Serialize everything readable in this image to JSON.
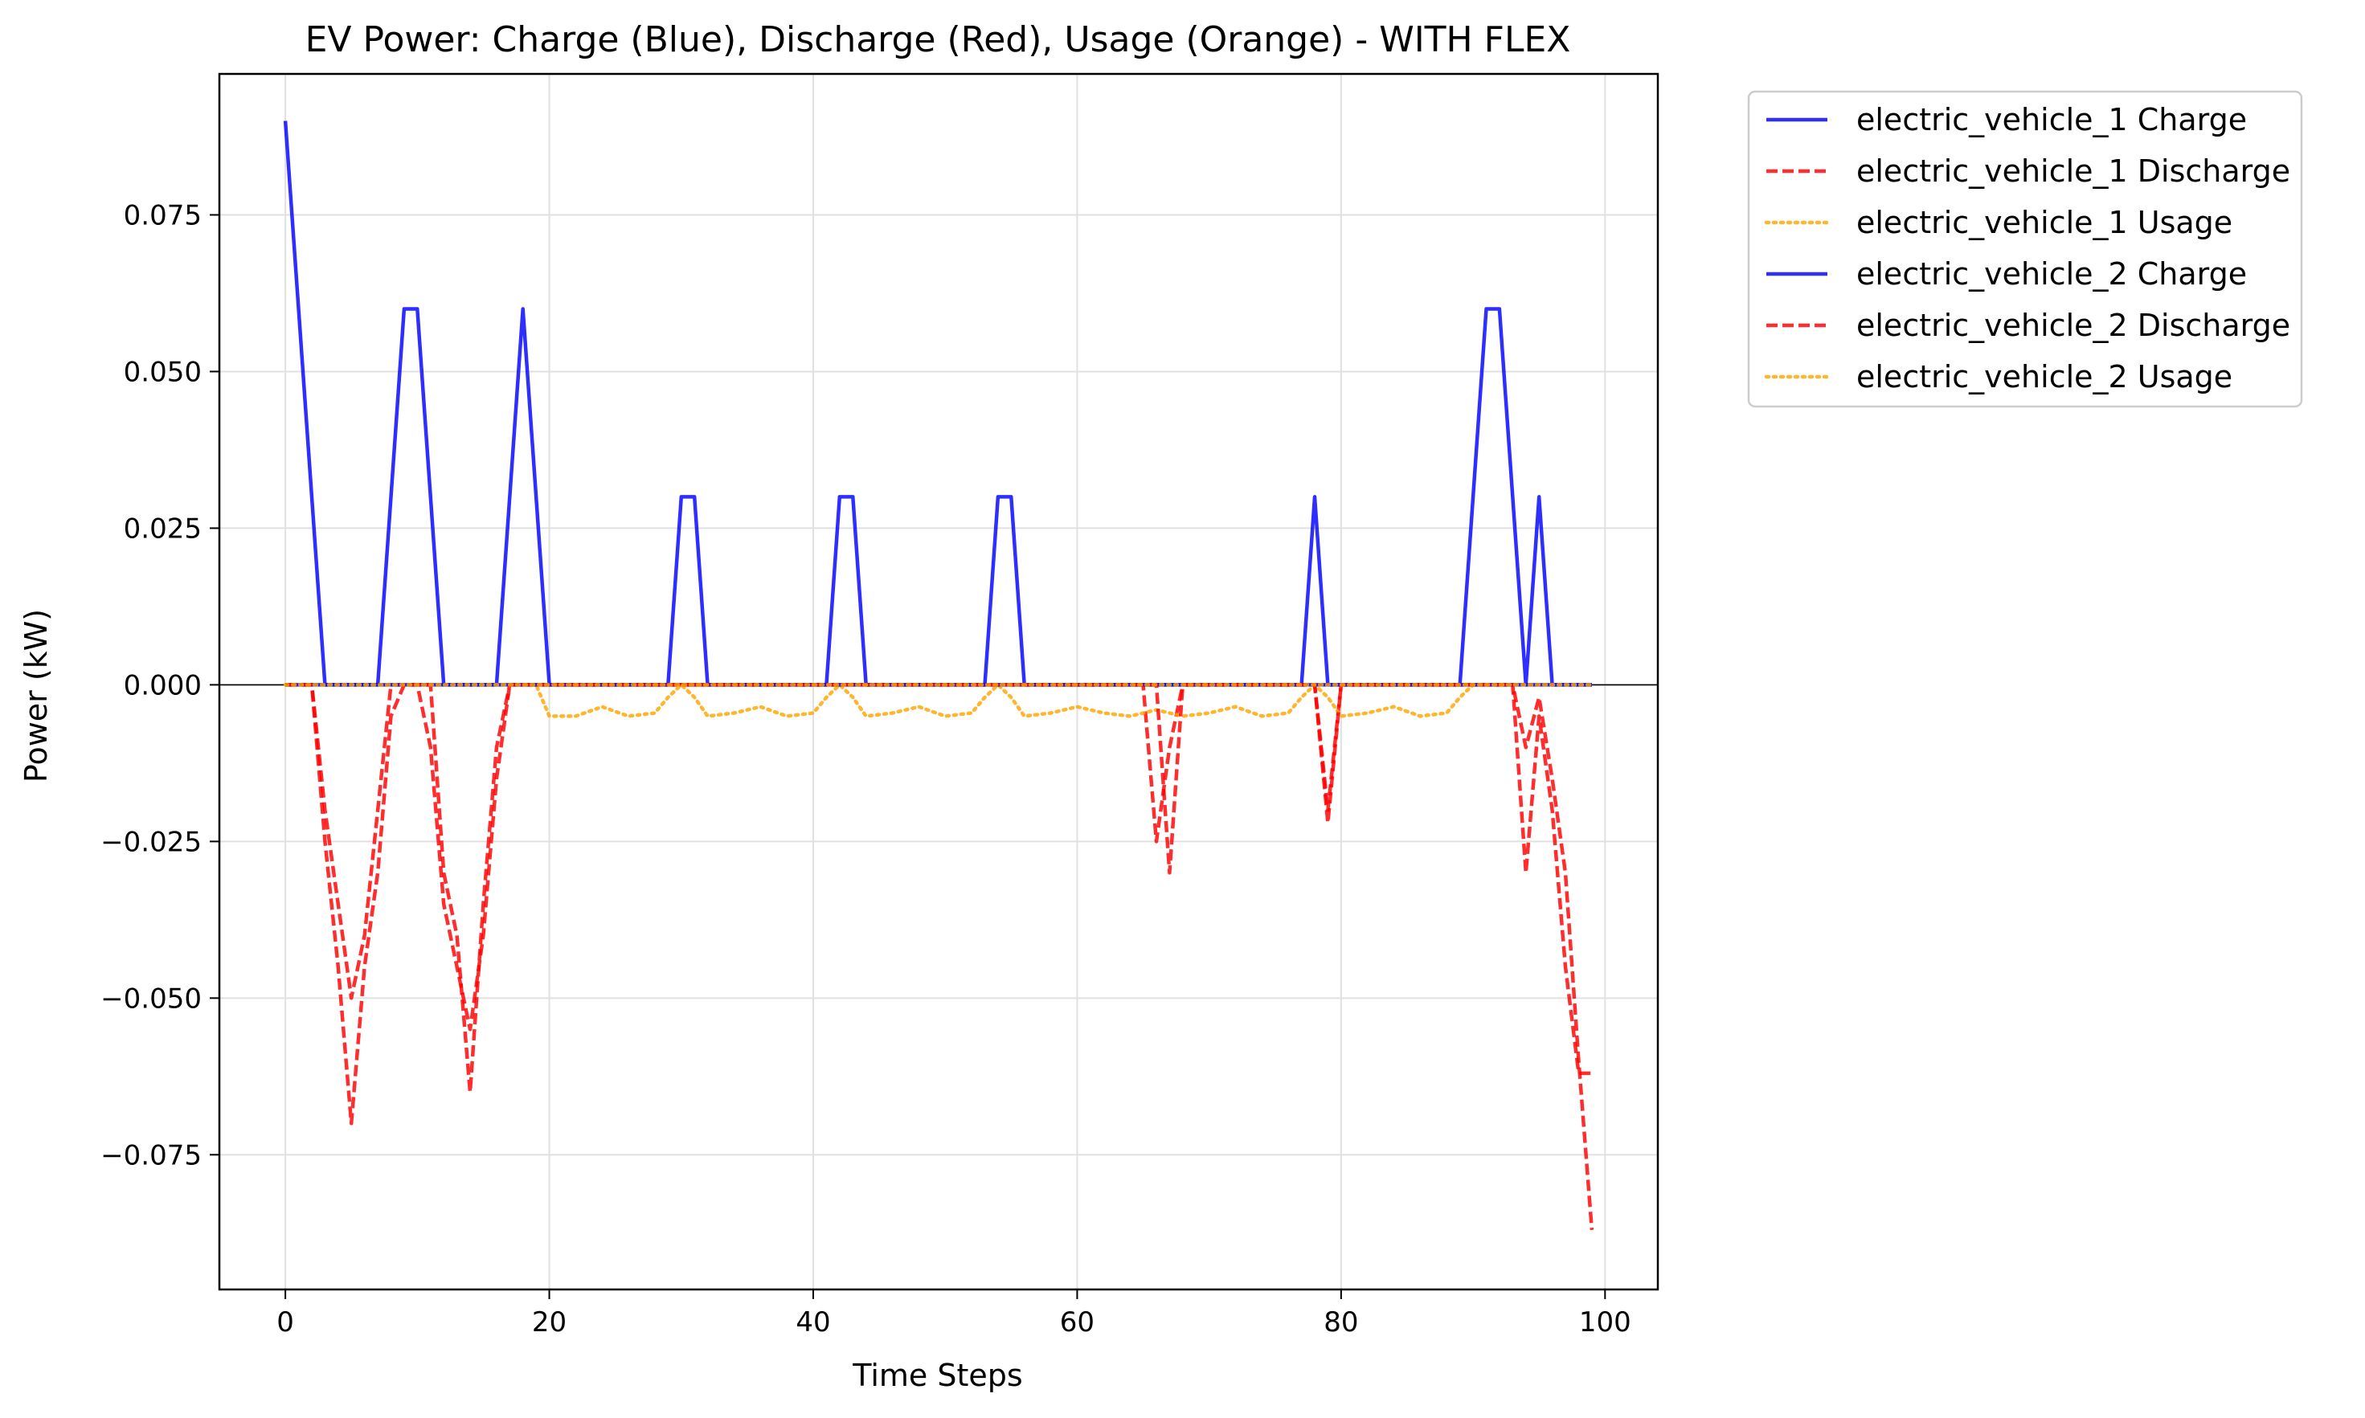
{
  "chart_data": {
    "type": "line",
    "title": "EV Power: Charge (Blue), Discharge (Red), Usage (Orange) - WITH FLEX",
    "xlabel": "Time Steps",
    "ylabel": "Power (kW)",
    "xlim": [
      -5,
      104
    ],
    "ylim": [
      -0.0965,
      0.0975
    ],
    "xticks": [
      0,
      20,
      40,
      60,
      80,
      100
    ],
    "xtick_labels": [
      "0",
      "20",
      "40",
      "60",
      "80",
      "100"
    ],
    "yticks": [
      -0.075,
      -0.05,
      -0.025,
      0.0,
      0.025,
      0.05,
      0.075
    ],
    "ytick_labels": [
      "−0.075",
      "−0.050",
      "−0.025",
      "0.000",
      "0.025",
      "0.050",
      "0.075"
    ],
    "grid": true,
    "legend_position": "outside-right-top",
    "series": [
      {
        "name": "electric_vehicle_1 Charge",
        "color": "#0000ff",
        "style": "solid",
        "points": [
          [
            0,
            0.09
          ],
          [
            3,
            0
          ],
          [
            7,
            0
          ],
          [
            9,
            0.06
          ],
          [
            10,
            0.06
          ],
          [
            12,
            0
          ],
          [
            16,
            0
          ],
          [
            18,
            0.06
          ],
          [
            20,
            0
          ],
          [
            41,
            0
          ],
          [
            42,
            0.03
          ],
          [
            43,
            0.03
          ],
          [
            44,
            0
          ],
          [
            53,
            0
          ],
          [
            54,
            0.03
          ],
          [
            55,
            0.03
          ],
          [
            56,
            0
          ],
          [
            77,
            0
          ],
          [
            78,
            0.03
          ],
          [
            79,
            0
          ],
          [
            89,
            0
          ],
          [
            91,
            0.06
          ],
          [
            92,
            0.06
          ],
          [
            94,
            0
          ],
          [
            95,
            0.03
          ],
          [
            96,
            0
          ],
          [
            99,
            0
          ]
        ]
      },
      {
        "name": "electric_vehicle_1 Discharge",
        "color": "#ff0000",
        "style": "dashed",
        "points": [
          [
            0,
            0
          ],
          [
            1,
            0
          ],
          [
            2,
            0
          ],
          [
            3,
            -0.02
          ],
          [
            4,
            -0.035
          ],
          [
            5,
            -0.05
          ],
          [
            6,
            -0.04
          ],
          [
            7,
            -0.02
          ],
          [
            8,
            0
          ],
          [
            10,
            0
          ],
          [
            11,
            -0.01
          ],
          [
            12,
            -0.035
          ],
          [
            13,
            -0.045
          ],
          [
            14,
            -0.055
          ],
          [
            15,
            -0.04
          ],
          [
            16,
            -0.015
          ],
          [
            17,
            0
          ],
          [
            18,
            0
          ],
          [
            65,
            0
          ],
          [
            66,
            -0.025
          ],
          [
            67,
            -0.01
          ],
          [
            68,
            0
          ],
          [
            78,
            0
          ],
          [
            79,
            -0.02
          ],
          [
            80,
            0
          ],
          [
            93,
            0
          ],
          [
            94,
            -0.01
          ],
          [
            95,
            -0.002
          ],
          [
            96,
            -0.015
          ],
          [
            97,
            -0.03
          ],
          [
            98,
            -0.06
          ],
          [
            99,
            -0.087
          ]
        ]
      },
      {
        "name": "electric_vehicle_1 Usage",
        "color": "#ffa500",
        "style": "dotted",
        "points": [
          [
            0,
            0
          ],
          [
            19,
            0
          ],
          [
            20,
            -0.005
          ],
          [
            22,
            -0.005
          ],
          [
            24,
            -0.0035
          ],
          [
            26,
            -0.005
          ],
          [
            28,
            -0.0045
          ],
          [
            29,
            -0.002
          ],
          [
            30,
            0
          ],
          [
            31,
            -0.002
          ],
          [
            32,
            -0.005
          ],
          [
            34,
            -0.0045
          ],
          [
            36,
            -0.0035
          ],
          [
            38,
            -0.005
          ],
          [
            40,
            -0.0045
          ],
          [
            41,
            -0.002
          ],
          [
            42,
            0
          ],
          [
            43,
            -0.002
          ],
          [
            44,
            -0.005
          ],
          [
            46,
            -0.0045
          ],
          [
            48,
            -0.0035
          ],
          [
            50,
            -0.005
          ],
          [
            52,
            -0.0045
          ],
          [
            53,
            -0.002
          ],
          [
            54,
            0
          ],
          [
            55,
            -0.002
          ],
          [
            56,
            -0.005
          ],
          [
            58,
            -0.0045
          ],
          [
            60,
            -0.0035
          ],
          [
            62,
            -0.0045
          ],
          [
            64,
            -0.005
          ],
          [
            66,
            -0.004
          ],
          [
            68,
            -0.005
          ],
          [
            70,
            -0.0045
          ],
          [
            72,
            -0.0035
          ],
          [
            74,
            -0.005
          ],
          [
            76,
            -0.0045
          ],
          [
            77,
            -0.002
          ],
          [
            78,
            0
          ],
          [
            79,
            -0.002
          ],
          [
            80,
            -0.005
          ],
          [
            82,
            -0.0045
          ],
          [
            84,
            -0.0035
          ],
          [
            86,
            -0.005
          ],
          [
            88,
            -0.0045
          ],
          [
            89,
            -0.002
          ],
          [
            90,
            0
          ],
          [
            99,
            0
          ]
        ]
      },
      {
        "name": "electric_vehicle_2 Charge",
        "color": "#0000ff",
        "style": "solid",
        "points": [
          [
            0,
            0
          ],
          [
            29,
            0
          ],
          [
            30,
            0.03
          ],
          [
            31,
            0.03
          ],
          [
            32,
            0
          ],
          [
            99,
            0
          ]
        ]
      },
      {
        "name": "electric_vehicle_2 Discharge",
        "color": "#ff0000",
        "style": "dashed",
        "points": [
          [
            0,
            0
          ],
          [
            2,
            0
          ],
          [
            3,
            -0.025
          ],
          [
            4,
            -0.045
          ],
          [
            5,
            -0.07
          ],
          [
            6,
            -0.045
          ],
          [
            7,
            -0.03
          ],
          [
            8,
            -0.005
          ],
          [
            9,
            0
          ],
          [
            11,
            0
          ],
          [
            12,
            -0.03
          ],
          [
            13,
            -0.04
          ],
          [
            14,
            -0.065
          ],
          [
            15,
            -0.035
          ],
          [
            16,
            -0.01
          ],
          [
            17,
            0
          ],
          [
            66,
            0
          ],
          [
            67,
            -0.03
          ],
          [
            68,
            0
          ],
          [
            78,
            0
          ],
          [
            79,
            -0.022
          ],
          [
            80,
            0
          ],
          [
            93,
            0
          ],
          [
            94,
            -0.03
          ],
          [
            95,
            -0.005
          ],
          [
            96,
            -0.02
          ],
          [
            97,
            -0.045
          ],
          [
            98,
            -0.062
          ],
          [
            99,
            -0.062
          ]
        ]
      },
      {
        "name": "electric_vehicle_2 Usage",
        "color": "#ffa500",
        "style": "dotted",
        "points": [
          [
            0,
            0
          ],
          [
            99,
            0
          ]
        ]
      }
    ]
  }
}
